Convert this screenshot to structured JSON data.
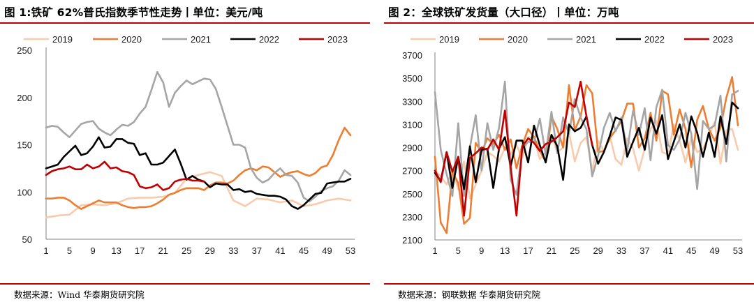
{
  "panels": [
    {
      "title": "图 1:铁矿 62%普氏指数季节性走势丨单位：美元/吨",
      "source": "数据来源：Wind 华泰期货研究院"
    },
    {
      "title": "图 2：全球铁矿发货量（大口径）丨单位：万吨",
      "source": "数据来源：钢联数据 华泰期货研究院"
    }
  ],
  "series_colors": {
    "2019": "#f8cbad",
    "2020": "#ed7d31",
    "2021": "#a5a5a5",
    "2022": "#000000",
    "2023": "#c00000"
  },
  "chart_data": [
    {
      "type": "line",
      "title": "图 1:铁矿 62%普氏指数季节性走势丨单位：美元/吨",
      "ylim": [
        50,
        250
      ],
      "yticks": [
        50,
        100,
        150,
        200,
        250
      ],
      "xlim": [
        1,
        53
      ],
      "xticks": [
        1,
        5,
        9,
        13,
        17,
        21,
        25,
        29,
        33,
        37,
        41,
        45,
        49,
        53
      ],
      "legend_position": "top",
      "series": [
        {
          "name": "2019",
          "x": [
            1,
            3,
            5,
            7,
            9,
            11,
            13,
            15,
            17,
            19,
            21,
            23,
            25,
            27,
            29,
            31,
            33,
            35,
            37,
            39,
            41,
            43,
            45,
            47,
            49,
            51,
            53
          ],
          "values": [
            73,
            75,
            76,
            86,
            87,
            86,
            88,
            93,
            94,
            94,
            95,
            99,
            114,
            118,
            121,
            117,
            91,
            85,
            93,
            92,
            89,
            91,
            85,
            87,
            91,
            93,
            91
          ]
        },
        {
          "name": "2020",
          "x": [
            1,
            2,
            3,
            4,
            5,
            6,
            7,
            8,
            9,
            10,
            11,
            12,
            13,
            14,
            15,
            16,
            17,
            18,
            19,
            20,
            21,
            22,
            23,
            24,
            25,
            26,
            27,
            28,
            29,
            30,
            31,
            32,
            33,
            34,
            35,
            36,
            37,
            38,
            39,
            40,
            41,
            42,
            43,
            44,
            45,
            46,
            47,
            48,
            49,
            50,
            51,
            52,
            53
          ],
          "values": [
            93,
            93,
            94,
            94,
            91,
            86,
            82,
            85,
            88,
            91,
            89,
            89,
            89,
            86,
            84,
            83,
            84,
            84,
            85,
            88,
            92,
            97,
            99,
            102,
            104,
            104,
            104,
            102,
            107,
            110,
            110,
            109,
            112,
            118,
            123,
            125,
            123,
            127,
            126,
            121,
            116,
            119,
            121,
            122,
            119,
            117,
            120,
            126,
            128,
            139,
            155,
            168,
            160
          ]
        },
        {
          "name": "2021",
          "x": [
            1,
            2,
            3,
            4,
            5,
            6,
            7,
            8,
            9,
            10,
            11,
            12,
            13,
            14,
            15,
            16,
            17,
            18,
            19,
            20,
            21,
            22,
            23,
            24,
            25,
            26,
            27,
            28,
            29,
            30,
            31,
            32,
            33,
            34,
            35,
            36,
            37,
            38,
            39,
            40,
            41,
            42,
            43,
            44,
            45,
            46,
            47,
            48,
            49,
            50,
            51,
            52,
            53
          ],
          "values": [
            168,
            170,
            169,
            163,
            158,
            165,
            172,
            174,
            175,
            167,
            163,
            160,
            166,
            171,
            170,
            174,
            183,
            190,
            208,
            227,
            216,
            190,
            205,
            212,
            218,
            214,
            217,
            220,
            219,
            209,
            190,
            170,
            150,
            150,
            147,
            125,
            115,
            110,
            113,
            120,
            125,
            118,
            117,
            110,
            94,
            90,
            95,
            101,
            104,
            106,
            112,
            123,
            118
          ]
        },
        {
          "name": "2022",
          "x": [
            1,
            2,
            3,
            4,
            5,
            6,
            7,
            8,
            9,
            10,
            11,
            12,
            13,
            14,
            15,
            16,
            17,
            18,
            19,
            20,
            21,
            22,
            23,
            24,
            25,
            26,
            27,
            28,
            29,
            30,
            31,
            32,
            33,
            34,
            35,
            36,
            37,
            38,
            39,
            40,
            41,
            42,
            43,
            44,
            45,
            46,
            47,
            48,
            49,
            50,
            51,
            52,
            53
          ],
          "values": [
            125,
            127,
            129,
            137,
            143,
            149,
            139,
            141,
            148,
            158,
            147,
            148,
            156,
            156,
            152,
            151,
            139,
            141,
            129,
            129,
            131,
            138,
            145,
            130,
            113,
            117,
            113,
            111,
            105,
            109,
            108,
            108,
            102,
            103,
            100,
            101,
            98,
            97,
            96,
            96,
            95,
            92,
            85,
            82,
            86,
            92,
            98,
            99,
            109,
            110,
            111,
            111,
            114
          ]
        },
        {
          "name": "2023",
          "x": [
            1,
            2,
            3,
            4,
            5,
            6,
            7,
            8,
            9,
            10,
            11,
            12,
            13,
            14,
            15,
            16,
            17,
            18,
            19,
            20,
            21,
            22,
            23,
            24,
            25,
            26,
            27,
            28
          ],
          "values": [
            118,
            122,
            124,
            125,
            127,
            124,
            124,
            129,
            125,
            127,
            132,
            125,
            126,
            122,
            121,
            118,
            106,
            104,
            105,
            108,
            102,
            104,
            111,
            113,
            114,
            112,
            112,
            111
          ]
        }
      ]
    },
    {
      "type": "line",
      "title": "图 2：全球铁矿发货量（大口径）丨单位：万吨",
      "ylim": [
        2100,
        3700
      ],
      "yticks": [
        2100,
        2300,
        2500,
        2700,
        2900,
        3100,
        3300,
        3500,
        3700
      ],
      "xlim": [
        1,
        53
      ],
      "xticks": [
        1,
        5,
        9,
        13,
        17,
        21,
        25,
        29,
        33,
        37,
        41,
        45,
        49,
        53
      ],
      "legend_position": "top",
      "series": [
        {
          "name": "2019",
          "x": [
            1,
            2,
            3,
            4,
            5,
            6,
            7,
            8,
            9,
            10,
            11,
            12,
            13,
            14,
            15,
            16,
            17,
            18,
            19,
            20,
            21,
            22,
            23,
            24,
            25,
            26,
            27,
            28,
            29,
            30,
            31,
            32,
            33,
            34,
            35,
            36,
            37,
            38,
            39,
            40,
            41,
            42,
            43,
            44,
            45,
            46,
            47,
            48,
            49,
            50,
            51,
            52,
            53
          ],
          "values": [
            2700,
            2650,
            2580,
            2700,
            2540,
            2780,
            2460,
            2580,
            2700,
            2860,
            2830,
            2780,
            2900,
            2840,
            2920,
            2810,
            2990,
            2980,
            2800,
            2860,
            3010,
            2860,
            2900,
            3030,
            2780,
            2940,
            2990,
            2700,
            2960,
            2870,
            3000,
            2800,
            2750,
            2980,
            2890,
            2700,
            2890,
            3060,
            3130,
            2860,
            2840,
            3100,
            2960,
            2770,
            2990,
            2860,
            2890,
            3000,
            3120,
            2760,
            3050,
            3060,
            2880
          ]
        },
        {
          "name": "2020",
          "x": [
            1,
            2,
            3,
            4,
            5,
            6,
            7,
            8,
            9,
            10,
            11,
            12,
            13,
            14,
            15,
            16,
            17,
            18,
            19,
            20,
            21,
            22,
            23,
            24,
            25,
            26,
            27,
            28,
            29,
            30,
            31,
            32,
            33,
            34,
            35,
            36,
            37,
            38,
            39,
            40,
            41,
            42,
            43,
            44,
            45,
            46,
            47,
            48,
            49,
            50,
            51,
            52,
            53
          ],
          "values": [
            2820,
            2250,
            2160,
            2690,
            2590,
            2240,
            2290,
            2940,
            2860,
            2980,
            2930,
            3010,
            2880,
            2970,
            2720,
            2920,
            3060,
            2990,
            2870,
            2780,
            3170,
            3060,
            2900,
            3440,
            3050,
            3170,
            3440,
            3370,
            2860,
            2870,
            2980,
            3050,
            3130,
            3280,
            3280,
            2900,
            2980,
            3200,
            2960,
            3390,
            3360,
            3010,
            3230,
            3060,
            2730,
            3140,
            3260,
            3060,
            2960,
            3070,
            3330,
            3510,
            3090
          ]
        },
        {
          "name": "2021",
          "x": [
            1,
            2,
            3,
            4,
            5,
            6,
            7,
            8,
            9,
            10,
            11,
            12,
            13,
            14,
            15,
            16,
            17,
            18,
            19,
            20,
            21,
            22,
            23,
            24,
            25,
            26,
            27,
            28,
            29,
            30,
            31,
            32,
            33,
            34,
            35,
            36,
            37,
            38,
            39,
            40,
            41,
            42,
            43,
            44,
            45,
            46,
            47,
            48,
            49,
            50,
            51,
            52,
            53
          ],
          "values": [
            3380,
            2880,
            2670,
            2480,
            3110,
            2480,
            2900,
            3180,
            2700,
            3110,
            2880,
            3070,
            3470,
            2620,
            2490,
            2890,
            2950,
            2950,
            3150,
            2840,
            3210,
            2850,
            3160,
            3020,
            3320,
            3160,
            3060,
            2650,
            2830,
            3070,
            3200,
            3040,
            3160,
            2870,
            3220,
            3010,
            3240,
            2790,
            3250,
            3400,
            2920,
            2880,
            2970,
            3200,
            3020,
            2540,
            3130,
            3060,
            3090,
            3350,
            2780,
            3360,
            3390
          ]
        },
        {
          "name": "2022",
          "x": [
            1,
            2,
            3,
            4,
            5,
            6,
            7,
            8,
            9,
            10,
            11,
            12,
            13,
            14,
            15,
            16,
            17,
            18,
            19,
            20,
            21,
            22,
            23,
            24,
            25,
            26,
            27,
            28,
            29,
            30,
            31,
            32,
            33,
            34,
            35,
            36,
            37,
            38,
            39,
            40,
            41,
            42,
            43,
            44,
            45,
            46,
            47,
            48,
            49,
            50,
            51,
            52,
            53
          ],
          "values": [
            2680,
            2610,
            2860,
            2550,
            2820,
            2540,
            2910,
            2600,
            2880,
            2890,
            2550,
            2890,
            2990,
            2740,
            2960,
            2960,
            2770,
            3090,
            2920,
            2770,
            3010,
            2910,
            2620,
            3100,
            3040,
            3070,
            3170,
            2920,
            2760,
            2860,
            3000,
            3160,
            3140,
            2820,
            2950,
            3070,
            2880,
            3160,
            3020,
            3180,
            2800,
            2950,
            3100,
            2900,
            3170,
            3030,
            2820,
            3030,
            2820,
            3170,
            2930,
            3290,
            3240
          ]
        },
        {
          "name": "2023",
          "x": [
            1,
            2,
            3,
            4,
            5,
            6,
            7,
            8,
            9,
            10,
            11,
            12,
            13,
            14,
            15,
            16,
            17,
            18,
            19,
            20,
            21,
            22,
            23,
            24,
            25,
            26,
            27,
            28
          ],
          "values": [
            2700,
            2600,
            2860,
            2690,
            2820,
            2310,
            2810,
            2850,
            2900,
            2880,
            2970,
            2880,
            3220,
            2730,
            2310,
            2910,
            2980,
            2940,
            2870,
            2930,
            2950,
            2990,
            3040,
            3290,
            3250,
            3470,
            3170,
            2920
          ]
        }
      ]
    }
  ]
}
